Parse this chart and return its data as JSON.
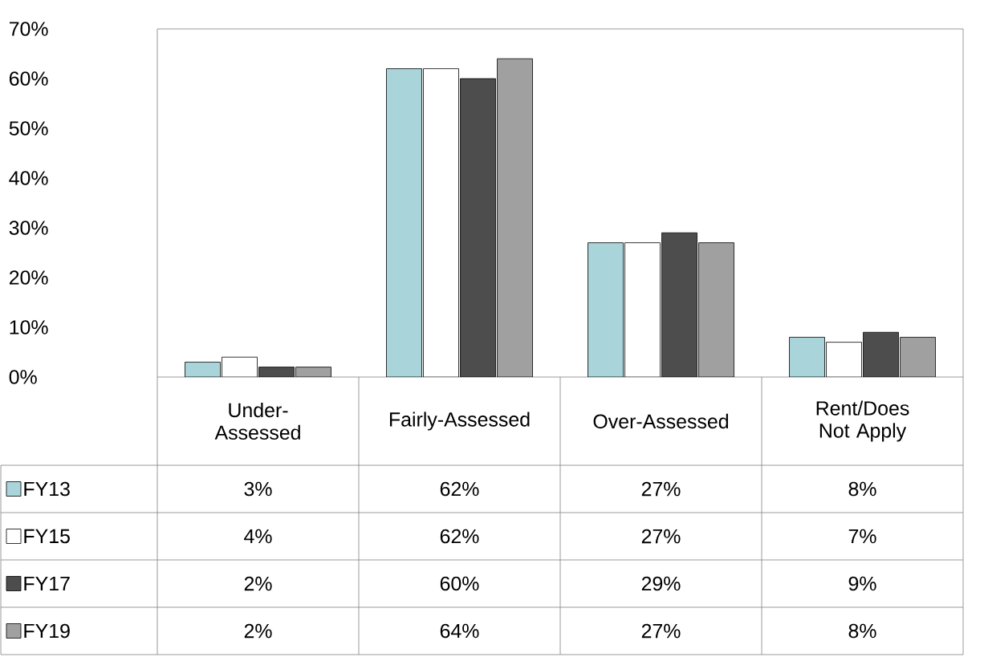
{
  "chart_data": {
    "type": "bar",
    "categories": [
      "Under-Assessed",
      "Fairly-Assessed",
      "Over-Assessed",
      "Rent/Does Not Apply"
    ],
    "series": [
      {
        "name": "FY13",
        "color": "#a8d4da",
        "values": [
          3,
          62,
          27,
          8
        ],
        "value_labels": [
          "3%",
          "62%",
          "27%",
          "8%"
        ]
      },
      {
        "name": "FY15",
        "color": "#ffffff",
        "values": [
          4,
          62,
          27,
          7
        ],
        "value_labels": [
          "4%",
          "62%",
          "27%",
          "7%"
        ]
      },
      {
        "name": "FY17",
        "color": "#4d4d4d",
        "values": [
          2,
          60,
          29,
          9
        ],
        "value_labels": [
          "2%",
          "60%",
          "29%",
          "9%"
        ]
      },
      {
        "name": "FY19",
        "color": "#a0a0a0",
        "values": [
          2,
          64,
          27,
          8
        ],
        "value_labels": [
          "2%",
          "64%",
          "27%",
          "8%"
        ]
      }
    ],
    "ylim": [
      0,
      70
    ],
    "yticks": [
      {
        "value": 0,
        "label": "0%"
      },
      {
        "value": 10,
        "label": "10%"
      },
      {
        "value": 20,
        "label": "20%"
      },
      {
        "value": 30,
        "label": "30%"
      },
      {
        "value": 40,
        "label": "40%"
      },
      {
        "value": 50,
        "label": "50%"
      },
      {
        "value": 60,
        "label": "60%"
      },
      {
        "value": 70,
        "label": "70%"
      }
    ],
    "legend": "bottom"
  }
}
